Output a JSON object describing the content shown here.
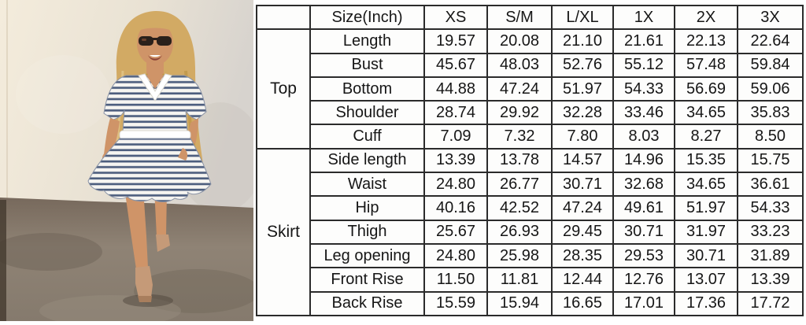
{
  "photo": {
    "description": "Model with long blonde hair and sunglasses wearing a navy-and-white striped V-neck top with white collar and matching flowy drawstring skirt, standing on a mottled concrete floor against a cream plaster wall",
    "colors": {
      "wall": "#eee6d7",
      "wall_shade": "#d9d5cf",
      "ground": "#8b7f71",
      "ground_dark": "#655a4e",
      "stripe_navy": "#4d5e7e",
      "stripe_white": "#f6f5f1",
      "skin": "#cf9468",
      "hair": "#d2aa64",
      "collar_white": "#ffffff",
      "sandal": "#c59a78",
      "sunglasses": "#2a201b",
      "gold": "#c09a42"
    }
  },
  "size_chart": {
    "corner_label": "",
    "columns": [
      "Size(Inch)",
      "XS",
      "S/M",
      "L/XL",
      "1X",
      "2X",
      "3X"
    ],
    "sections": [
      {
        "label": "Top",
        "rows": [
          {
            "name": "Length",
            "values": [
              "19.57",
              "20.08",
              "21.10",
              "21.61",
              "22.13",
              "22.64"
            ]
          },
          {
            "name": "Bust",
            "values": [
              "45.67",
              "48.03",
              "52.76",
              "55.12",
              "57.48",
              "59.84"
            ]
          },
          {
            "name": "Bottom",
            "values": [
              "44.88",
              "47.24",
              "51.97",
              "54.33",
              "56.69",
              "59.06"
            ]
          },
          {
            "name": "Shoulder",
            "values": [
              "28.74",
              "29.92",
              "32.28",
              "33.46",
              "34.65",
              "35.83"
            ]
          },
          {
            "name": "Cuff",
            "values": [
              "7.09",
              "7.32",
              "7.80",
              "8.03",
              "8.27",
              "8.50"
            ]
          }
        ]
      },
      {
        "label": "Skirt",
        "rows": [
          {
            "name": "Side length",
            "values": [
              "13.39",
              "13.78",
              "14.57",
              "14.96",
              "15.35",
              "15.75"
            ]
          },
          {
            "name": "Waist",
            "values": [
              "24.80",
              "26.77",
              "30.71",
              "32.68",
              "34.65",
              "36.61"
            ]
          },
          {
            "name": "Hip",
            "values": [
              "40.16",
              "42.52",
              "47.24",
              "49.61",
              "51.97",
              "54.33"
            ]
          },
          {
            "name": "Thigh",
            "values": [
              "25.67",
              "26.93",
              "29.45",
              "30.71",
              "31.97",
              "33.23"
            ]
          },
          {
            "name": "Leg opening",
            "values": [
              "24.80",
              "25.98",
              "28.35",
              "29.53",
              "30.71",
              "31.89"
            ]
          },
          {
            "name": "Front Rise",
            "values": [
              "11.50",
              "11.81",
              "12.44",
              "12.76",
              "13.07",
              "13.39"
            ]
          },
          {
            "name": "Back Rise",
            "values": [
              "15.59",
              "15.94",
              "16.65",
              "17.01",
              "17.36",
              "17.72"
            ]
          }
        ]
      }
    ]
  },
  "chart_data": {
    "type": "table",
    "title": "Size(Inch)",
    "columns": [
      "Size(Inch)",
      "XS",
      "S/M",
      "L/XL",
      "1X",
      "2X",
      "3X"
    ],
    "rows": [
      {
        "section": "Top",
        "measurement": "Length",
        "values": [
          19.57,
          20.08,
          21.1,
          21.61,
          22.13,
          22.64
        ]
      },
      {
        "section": "Top",
        "measurement": "Bust",
        "values": [
          45.67,
          48.03,
          52.76,
          55.12,
          57.48,
          59.84
        ]
      },
      {
        "section": "Top",
        "measurement": "Bottom",
        "values": [
          44.88,
          47.24,
          51.97,
          54.33,
          56.69,
          59.06
        ]
      },
      {
        "section": "Top",
        "measurement": "Shoulder",
        "values": [
          28.74,
          29.92,
          32.28,
          33.46,
          34.65,
          35.83
        ]
      },
      {
        "section": "Top",
        "measurement": "Cuff",
        "values": [
          7.09,
          7.32,
          7.8,
          8.03,
          8.27,
          8.5
        ]
      },
      {
        "section": "Skirt",
        "measurement": "Side length",
        "values": [
          13.39,
          13.78,
          14.57,
          14.96,
          15.35,
          15.75
        ]
      },
      {
        "section": "Skirt",
        "measurement": "Waist",
        "values": [
          24.8,
          26.77,
          30.71,
          32.68,
          34.65,
          36.61
        ]
      },
      {
        "section": "Skirt",
        "measurement": "Hip",
        "values": [
          40.16,
          42.52,
          47.24,
          49.61,
          51.97,
          54.33
        ]
      },
      {
        "section": "Skirt",
        "measurement": "Thigh",
        "values": [
          25.67,
          26.93,
          29.45,
          30.71,
          31.97,
          33.23
        ]
      },
      {
        "section": "Skirt",
        "measurement": "Leg opening",
        "values": [
          24.8,
          25.98,
          28.35,
          29.53,
          30.71,
          31.89
        ]
      },
      {
        "section": "Skirt",
        "measurement": "Front Rise",
        "values": [
          11.5,
          11.81,
          12.44,
          12.76,
          13.07,
          13.39
        ]
      },
      {
        "section": "Skirt",
        "measurement": "Back Rise",
        "values": [
          15.59,
          15.94,
          16.65,
          17.01,
          17.36,
          17.72
        ]
      }
    ]
  }
}
